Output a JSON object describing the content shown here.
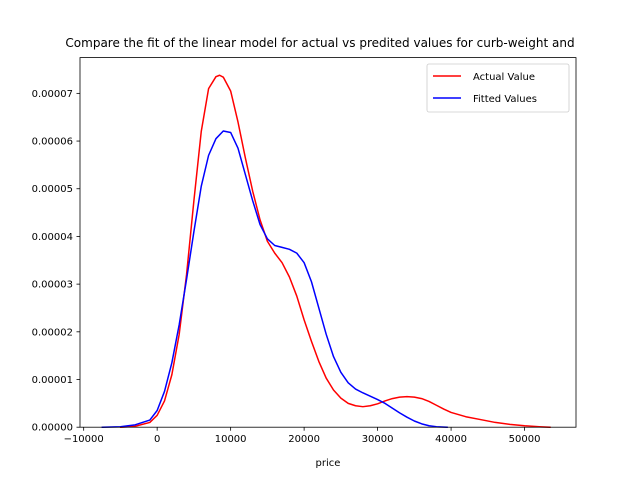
{
  "chart_data": {
    "type": "line",
    "title": "Compare the fit of the linear model for actual vs predited values for curb-weight and",
    "xlabel": "price",
    "ylabel": "",
    "xlim": [
      -10500,
      57000
    ],
    "ylim": [
      0,
      7.75e-05
    ],
    "x_ticks": [
      -10000,
      0,
      10000,
      20000,
      30000,
      40000,
      50000
    ],
    "x_tick_labels": [
      "−10000",
      "0",
      "10000",
      "20000",
      "30000",
      "40000",
      "50000"
    ],
    "y_ticks": [
      0,
      1e-05,
      2e-05,
      3e-05,
      4e-05,
      5e-05,
      6e-05,
      7e-05
    ],
    "y_tick_labels": [
      "0.00000",
      "0.00001",
      "0.00002",
      "0.00003",
      "0.00004",
      "0.00005",
      "0.00006",
      "0.00007"
    ],
    "grid": false,
    "legend_position": "top-right",
    "series": [
      {
        "name": "Actual Value",
        "color": "#ff0000",
        "points": [
          [
            -5000,
            0.0
          ],
          [
            -3000,
            2e-07
          ],
          [
            -1000,
            1e-06
          ],
          [
            0,
            2.5e-06
          ],
          [
            1000,
            5.5e-06
          ],
          [
            2000,
            1.1e-05
          ],
          [
            3000,
            1.95e-05
          ],
          [
            4000,
            3.2e-05
          ],
          [
            5000,
            4.75e-05
          ],
          [
            6000,
            6.2e-05
          ],
          [
            7000,
            7.1e-05
          ],
          [
            8000,
            7.35e-05
          ],
          [
            8500,
            7.38e-05
          ],
          [
            9000,
            7.34e-05
          ],
          [
            10000,
            7.05e-05
          ],
          [
            11000,
            6.4e-05
          ],
          [
            12000,
            5.65e-05
          ],
          [
            13000,
            4.95e-05
          ],
          [
            14000,
            4.35e-05
          ],
          [
            15000,
            3.9e-05
          ],
          [
            16000,
            3.65e-05
          ],
          [
            17000,
            3.45e-05
          ],
          [
            18000,
            3.15e-05
          ],
          [
            19000,
            2.75e-05
          ],
          [
            20000,
            2.25e-05
          ],
          [
            21000,
            1.8e-05
          ],
          [
            22000,
            1.38e-05
          ],
          [
            23000,
            1.03e-05
          ],
          [
            24000,
            7.8e-06
          ],
          [
            25000,
            6.1e-06
          ],
          [
            26000,
            5e-06
          ],
          [
            27000,
            4.5e-06
          ],
          [
            28000,
            4.3e-06
          ],
          [
            29000,
            4.5e-06
          ],
          [
            30000,
            4.9e-06
          ],
          [
            31000,
            5.5e-06
          ],
          [
            32000,
            6e-06
          ],
          [
            33000,
            6.3e-06
          ],
          [
            34000,
            6.4e-06
          ],
          [
            35000,
            6.3e-06
          ],
          [
            36000,
            6e-06
          ],
          [
            37000,
            5.4e-06
          ],
          [
            38000,
            4.6e-06
          ],
          [
            39000,
            3.8e-06
          ],
          [
            40000,
            3.1e-06
          ],
          [
            42000,
            2.2e-06
          ],
          [
            44000,
            1.6e-06
          ],
          [
            46000,
            1e-06
          ],
          [
            48000,
            6e-07
          ],
          [
            50000,
            3e-07
          ],
          [
            52000,
            1e-07
          ],
          [
            53500,
            0.0
          ]
        ]
      },
      {
        "name": "Fitted Values",
        "color": "#0000ff",
        "points": [
          [
            -7500,
            0.0
          ],
          [
            -5000,
            1e-07
          ],
          [
            -3000,
            5e-07
          ],
          [
            -1000,
            1.5e-06
          ],
          [
            0,
            3.5e-06
          ],
          [
            1000,
            7.5e-06
          ],
          [
            2000,
            1.35e-05
          ],
          [
            3000,
            2.15e-05
          ],
          [
            4000,
            3.1e-05
          ],
          [
            5000,
            4.1e-05
          ],
          [
            6000,
            5.05e-05
          ],
          [
            7000,
            5.7e-05
          ],
          [
            8000,
            6.05e-05
          ],
          [
            9000,
            6.21e-05
          ],
          [
            10000,
            6.18e-05
          ],
          [
            11000,
            5.85e-05
          ],
          [
            12000,
            5.3e-05
          ],
          [
            13000,
            4.75e-05
          ],
          [
            14000,
            4.25e-05
          ],
          [
            15000,
            3.95e-05
          ],
          [
            16000,
            3.81e-05
          ],
          [
            17000,
            3.77e-05
          ],
          [
            18000,
            3.73e-05
          ],
          [
            19000,
            3.65e-05
          ],
          [
            20000,
            3.45e-05
          ],
          [
            21000,
            3.05e-05
          ],
          [
            22000,
            2.5e-05
          ],
          [
            23000,
            1.95e-05
          ],
          [
            24000,
            1.48e-05
          ],
          [
            25000,
            1.15e-05
          ],
          [
            26000,
            9.3e-06
          ],
          [
            27000,
            8e-06
          ],
          [
            28000,
            7.2e-06
          ],
          [
            29000,
            6.5e-06
          ],
          [
            30000,
            5.8e-06
          ],
          [
            31000,
            5e-06
          ],
          [
            32000,
            4e-06
          ],
          [
            33000,
            3e-06
          ],
          [
            34000,
            2.1e-06
          ],
          [
            35000,
            1.3e-06
          ],
          [
            36000,
            7e-07
          ],
          [
            37000,
            3e-07
          ],
          [
            38000,
            1e-07
          ],
          [
            39500,
            0.0
          ]
        ]
      }
    ]
  }
}
